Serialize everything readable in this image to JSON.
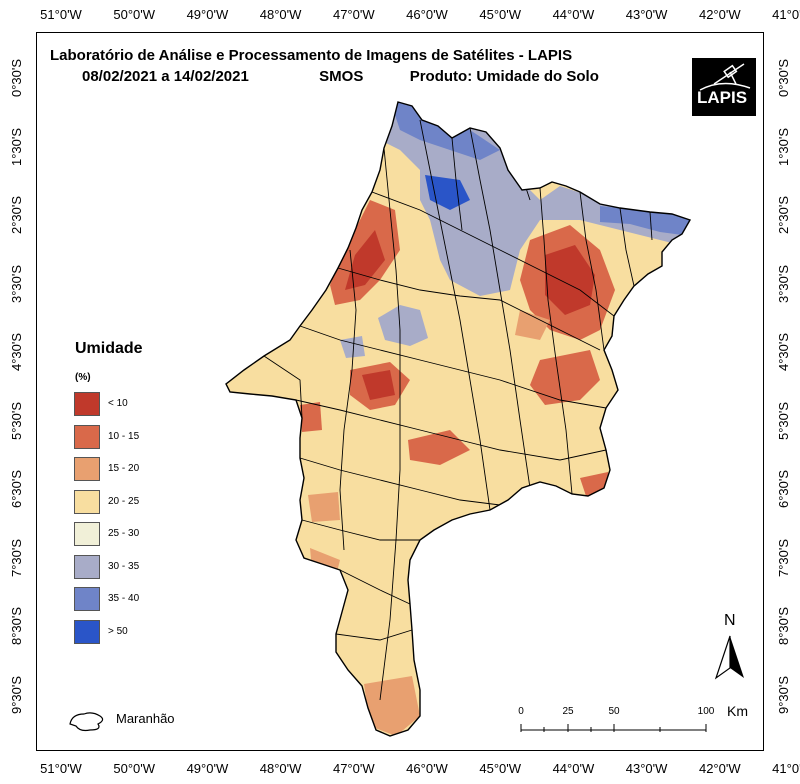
{
  "title": {
    "line1": "Laboratório de Análise e Processamento de Imagens de Satélites - LAPIS",
    "period": "08/02/2021  a  14/02/2021",
    "sensor": "SMOS",
    "product": "Produto: Umidade do Solo"
  },
  "logo": {
    "text": "LAPIS"
  },
  "axes": {
    "longitude_ticks": [
      "51°0'W",
      "50°0'W",
      "49°0'W",
      "48°0'W",
      "47°0'W",
      "46°0'W",
      "45°0'W",
      "44°0'W",
      "43°0'W",
      "42°0'W",
      "41°0'W"
    ],
    "latitude_ticks": [
      "0°30'S",
      "1°30'S",
      "2°30'S",
      "3°30'S",
      "4°30'S",
      "5°30'S",
      "6°30'S",
      "7°30'S",
      "8°30'S",
      "9°30'S"
    ]
  },
  "legend": {
    "title": "Umidade",
    "unit": "(%)",
    "classes": [
      {
        "label": "< 10",
        "color": "#c0392b"
      },
      {
        "label": "10 - 15",
        "color": "#d9694a"
      },
      {
        "label": "15 - 20",
        "color": "#e8a070"
      },
      {
        "label": "20 - 25",
        "color": "#f8dea0"
      },
      {
        "label": "25 - 30",
        "color": "#f1f0d8"
      },
      {
        "label": "30 - 35",
        "color": "#a8acc8"
      },
      {
        "label": "35 - 40",
        "color": "#6f84c8"
      },
      {
        "label": "> 50",
        "color": "#2a55c8"
      }
    ],
    "state_label": "Maranhão"
  },
  "scale_bar": {
    "labels": [
      "0",
      "25",
      "50",
      "100"
    ],
    "unit": "Km"
  },
  "north_arrow": {
    "label": "N"
  }
}
